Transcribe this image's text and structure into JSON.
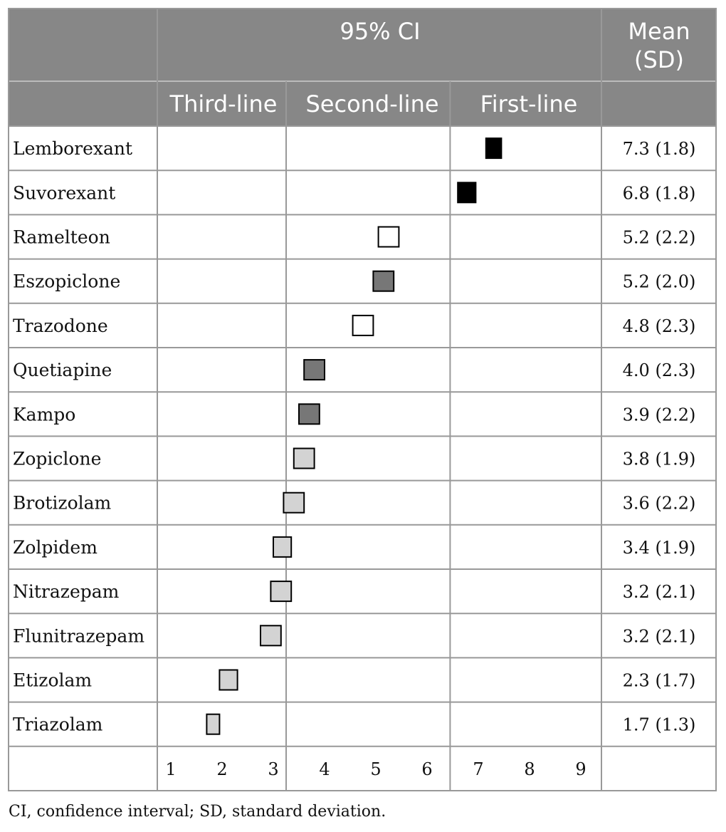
{
  "chart_data": {
    "type": "scatter",
    "header": {
      "ci_label": "95% CI",
      "mean_label_line1": "Mean",
      "mean_label_line2": "(SD)",
      "zones": [
        "Third-line",
        "Second-line",
        "First-line"
      ]
    },
    "x_ticks": [
      1,
      2,
      3,
      4,
      5,
      6,
      7,
      8,
      9
    ],
    "xlim": [
      0.5,
      9.5
    ],
    "zone_boundaries": [
      3.25,
      6.45
    ],
    "rows": [
      {
        "drug": "Lemborexant",
        "mean_sd": "7.3 (1.8)",
        "lower": 7.15,
        "upper": 7.45,
        "fill": "#000000"
      },
      {
        "drug": "Suvorexant",
        "mean_sd": "6.8 (1.8)",
        "lower": 6.6,
        "upper": 6.95,
        "fill": "#000000"
      },
      {
        "drug": "Ramelteon",
        "mean_sd": "5.2 (2.2)",
        "lower": 5.05,
        "upper": 5.45,
        "fill": "#ffffff"
      },
      {
        "drug": "Eszopiclone",
        "mean_sd": "5.2 (2.0)",
        "lower": 4.95,
        "upper": 5.35,
        "fill": "#777777"
      },
      {
        "drug": "Trazodone",
        "mean_sd": "4.8 (2.3)",
        "lower": 4.55,
        "upper": 4.95,
        "fill": "#ffffff"
      },
      {
        "drug": "Quetiapine",
        "mean_sd": "4.0 (2.3)",
        "lower": 3.6,
        "upper": 4.0,
        "fill": "#777777"
      },
      {
        "drug": "Kampo",
        "mean_sd": "3.9 (2.2)",
        "lower": 3.5,
        "upper": 3.9,
        "fill": "#777777"
      },
      {
        "drug": "Zopiclone",
        "mean_sd": "3.8 (1.9)",
        "lower": 3.4,
        "upper": 3.8,
        "fill": "#d3d3d3"
      },
      {
        "drug": "Brotizolam",
        "mean_sd": "3.6 (2.2)",
        "lower": 3.2,
        "upper": 3.6,
        "fill": "#d3d3d3"
      },
      {
        "drug": "Zolpidem",
        "mean_sd": "3.4 (1.9)",
        "lower": 3.0,
        "upper": 3.35,
        "fill": "#d3d3d3"
      },
      {
        "drug": "Nitrazepam",
        "mean_sd": "3.2 (2.1)",
        "lower": 2.95,
        "upper": 3.35,
        "fill": "#d3d3d3"
      },
      {
        "drug": "Flunitrazepam",
        "mean_sd": "3.2 (2.1)",
        "lower": 2.75,
        "upper": 3.15,
        "fill": "#d3d3d3"
      },
      {
        "drug": "Etizolam",
        "mean_sd": "2.3 (1.7)",
        "lower": 1.95,
        "upper": 2.3,
        "fill": "#d3d3d3"
      },
      {
        "drug": "Triazolam",
        "mean_sd": "1.7 (1.3)",
        "lower": 1.7,
        "upper": 1.95,
        "fill": "#d3d3d3"
      }
    ],
    "colors": {
      "header_bg": "#878787",
      "grid": "#999999"
    }
  },
  "footnote": "CI, confidence interval; SD, standard deviation."
}
